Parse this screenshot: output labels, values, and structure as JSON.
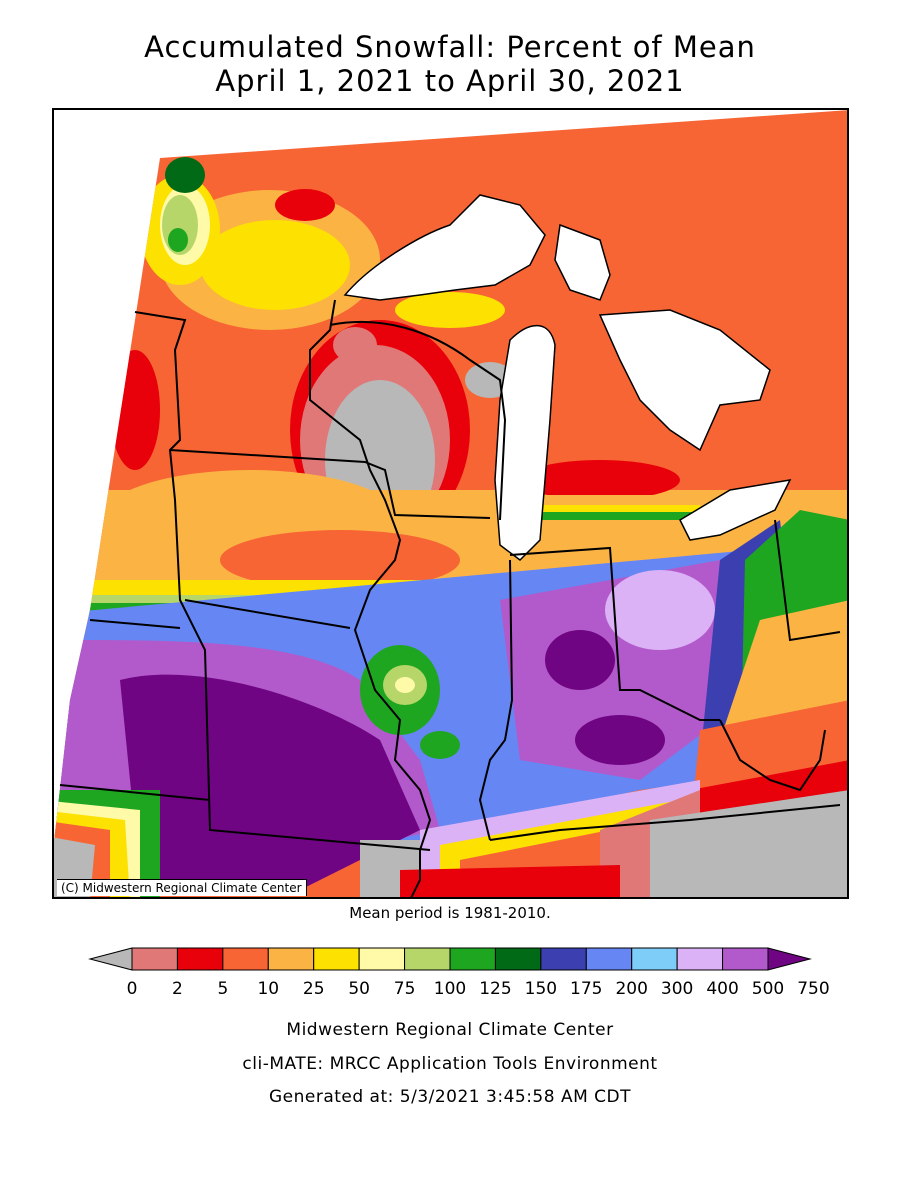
{
  "title": {
    "line1": "Accumulated Snowfall: Percent of Mean",
    "line2": "April 1, 2021 to April 30, 2021"
  },
  "map": {
    "credit": "(C) Midwestern Regional Climate Center",
    "mean_period": "Mean period is 1981-2010."
  },
  "legend": {
    "bins": [
      {
        "color": "#b8b8b8"
      },
      {
        "color": "#e07878"
      },
      {
        "color": "#e8000a"
      },
      {
        "color": "#f76535"
      },
      {
        "color": "#fbb444"
      },
      {
        "color": "#fde100"
      },
      {
        "color": "#fffaa8"
      },
      {
        "color": "#b6d66a"
      },
      {
        "color": "#1fa621"
      },
      {
        "color": "#006a16"
      },
      {
        "color": "#3b3fb0"
      },
      {
        "color": "#6686f4"
      },
      {
        "color": "#7ecdf8"
      },
      {
        "color": "#dcb2f6"
      },
      {
        "color": "#b25acb"
      },
      {
        "color": "#700583"
      }
    ],
    "tick_labels": [
      "0",
      "2",
      "5",
      "10",
      "25",
      "50",
      "75",
      "100",
      "125",
      "150",
      "175",
      "200",
      "300",
      "400",
      "500",
      "750"
    ]
  },
  "footer": {
    "line1": "Midwestern Regional Climate Center",
    "line2": "cli-MATE: MRCC Application Tools Environment",
    "line3": "Generated at: 5/3/2021 3:45:58 AM CDT"
  }
}
